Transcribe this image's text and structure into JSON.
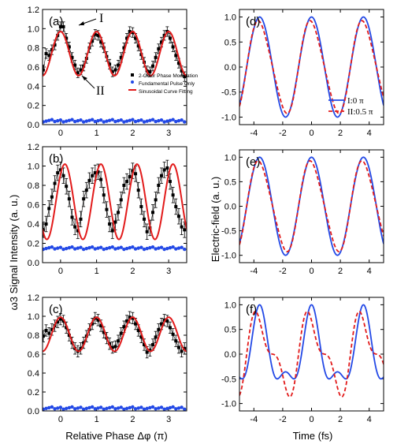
{
  "colors": {
    "measured": "#000000",
    "fit": "#e21b1b",
    "fundamental": "#2349e6",
    "field_I": "#2349e6",
    "field_II": "#e21b1b"
  },
  "left_xlabel": "Relative Phase Δφ (π)",
  "left_ylabel": "ω3 Signal Intensity (a. u.)",
  "right_xlabel": "Time (fs)",
  "right_ylabel": "Electric-field (a. u.)",
  "legend_left": [
    "2-Color Phase Modulation",
    "Fundamental Pulse Only",
    "Sinusoidal Curve Fitting"
  ],
  "legend_right": [
    "I:0 π",
    "II:0.5 π"
  ],
  "annotations": {
    "I": "I",
    "II": "II"
  },
  "chart_data": [
    {
      "panel": "(a)",
      "type": "scatter",
      "xlim": [
        -0.5,
        3.5
      ],
      "ylim": [
        0.0,
        1.2
      ],
      "xticks": [
        "0",
        "1",
        "2",
        "3"
      ],
      "yticks": [
        "0.0",
        "0.2",
        "0.4",
        "0.6",
        "0.8",
        "1.0",
        "1.2"
      ],
      "series": [
        {
          "name": "2-Color Phase Modulation",
          "x": [
            -0.48,
            -0.4,
            -0.32,
            -0.24,
            -0.16,
            -0.08,
            0.0,
            0.08,
            0.16,
            0.24,
            0.32,
            0.4,
            0.48,
            0.56,
            0.64,
            0.72,
            0.8,
            0.88,
            0.96,
            1.04,
            1.12,
            1.2,
            1.28,
            1.36,
            1.44,
            1.52,
            1.6,
            1.68,
            1.76,
            1.84,
            1.92,
            2.0,
            2.08,
            2.16,
            2.24,
            2.32,
            2.4,
            2.48,
            2.56,
            2.64,
            2.72,
            2.8,
            2.88,
            2.96,
            3.04,
            3.12,
            3.2,
            3.28,
            3.36,
            3.44
          ],
          "y": [
            0.57,
            0.74,
            0.72,
            0.78,
            0.83,
            0.93,
            1.02,
            1.02,
            0.9,
            0.81,
            0.7,
            0.62,
            0.54,
            0.57,
            0.61,
            0.69,
            0.8,
            0.87,
            0.94,
            0.93,
            0.86,
            0.8,
            0.71,
            0.63,
            0.55,
            0.57,
            0.62,
            0.7,
            0.8,
            0.9,
            0.97,
            0.96,
            0.9,
            0.82,
            0.73,
            0.65,
            0.56,
            0.55,
            0.61,
            0.7,
            0.79,
            0.86,
            0.93,
            0.97,
            0.9,
            0.81,
            0.72,
            0.64,
            0.56,
            0.5
          ],
          "err": 0.05
        },
        {
          "name": "Fundamental Pulse Only",
          "y_const": 0.04
        },
        {
          "name": "Sinusoidal Curve Fitting",
          "offset": 0.74,
          "amplitude": 0.23,
          "period": 1.0,
          "phase": 0.0
        }
      ]
    },
    {
      "panel": "(b)",
      "type": "scatter",
      "xlim": [
        -0.5,
        3.5
      ],
      "ylim": [
        0.0,
        1.2
      ],
      "xticks": [
        "0",
        "1",
        "2",
        "3"
      ],
      "yticks": [
        "0.0",
        "0.2",
        "0.4",
        "0.6",
        "0.8",
        "1.0",
        "1.2"
      ],
      "series": [
        {
          "name": "2-Color Phase Modulation",
          "x": [
            -0.48,
            -0.4,
            -0.32,
            -0.24,
            -0.16,
            -0.08,
            0.0,
            0.08,
            0.16,
            0.24,
            0.32,
            0.4,
            0.48,
            0.56,
            0.64,
            0.72,
            0.8,
            0.88,
            0.96,
            1.04,
            1.12,
            1.2,
            1.28,
            1.36,
            1.44,
            1.52,
            1.6,
            1.68,
            1.76,
            1.84,
            1.92,
            2.0,
            2.08,
            2.16,
            2.24,
            2.32,
            2.4,
            2.48,
            2.56,
            2.64,
            2.72,
            2.8,
            2.88,
            2.96,
            3.04,
            3.12,
            3.2,
            3.28,
            3.36,
            3.44
          ],
          "y": [
            0.34,
            0.4,
            0.56,
            0.68,
            0.82,
            0.93,
            0.96,
            0.9,
            0.79,
            0.66,
            0.47,
            0.37,
            0.33,
            0.45,
            0.66,
            0.75,
            0.85,
            0.9,
            0.93,
            0.94,
            0.86,
            0.7,
            0.55,
            0.4,
            0.33,
            0.42,
            0.52,
            0.65,
            0.8,
            0.84,
            0.89,
            0.95,
            0.92,
            0.75,
            0.58,
            0.45,
            0.32,
            0.36,
            0.52,
            0.65,
            0.8,
            0.9,
            0.96,
            0.98,
            0.84,
            0.7,
            0.58,
            0.48,
            0.37,
            0.34
          ],
          "err": 0.08
        },
        {
          "name": "Fundamental Pulse Only",
          "y_const": 0.15
        },
        {
          "name": "Sinusoidal Curve Fitting",
          "offset": 0.63,
          "amplitude": 0.39,
          "period": 1.0,
          "phase": 0.12
        }
      ]
    },
    {
      "panel": "(c)",
      "type": "scatter",
      "xlim": [
        -0.5,
        3.5
      ],
      "ylim": [
        0.0,
        1.2
      ],
      "xticks": [
        "0",
        "1",
        "2",
        "3"
      ],
      "yticks": [
        "0.0",
        "0.2",
        "0.4",
        "0.6",
        "0.8",
        "1.0",
        "1.2"
      ],
      "series": [
        {
          "name": "2-Color Phase Modulation",
          "x": [
            -0.48,
            -0.4,
            -0.32,
            -0.24,
            -0.16,
            -0.08,
            0.0,
            0.08,
            0.16,
            0.24,
            0.32,
            0.4,
            0.48,
            0.56,
            0.64,
            0.72,
            0.8,
            0.88,
            0.96,
            1.04,
            1.12,
            1.2,
            1.28,
            1.36,
            1.44,
            1.52,
            1.6,
            1.68,
            1.76,
            1.84,
            1.92,
            2.0,
            2.08,
            2.16,
            2.24,
            2.32,
            2.4,
            2.48,
            2.56,
            2.64,
            2.72,
            2.8,
            2.88,
            2.96,
            3.04,
            3.12,
            3.2,
            3.28,
            3.36,
            3.44
          ],
          "y": [
            0.79,
            0.85,
            0.82,
            0.86,
            0.9,
            0.94,
            0.97,
            0.95,
            0.88,
            0.8,
            0.72,
            0.66,
            0.63,
            0.66,
            0.72,
            0.79,
            0.86,
            0.92,
            0.98,
            0.96,
            0.9,
            0.83,
            0.77,
            0.71,
            0.67,
            0.68,
            0.74,
            0.82,
            0.89,
            0.95,
            0.99,
            0.98,
            0.92,
            0.85,
            0.78,
            0.7,
            0.62,
            0.64,
            0.7,
            0.78,
            0.86,
            0.92,
            0.96,
            0.95,
            0.88,
            0.81,
            0.74,
            0.67,
            0.63,
            0.66
          ],
          "err": 0.06
        },
        {
          "name": "Fundamental Pulse Only",
          "y_const": 0.03
        },
        {
          "name": "Sinusoidal Curve Fitting",
          "offset": 0.81,
          "amplitude": 0.18,
          "period": 1.0,
          "phase": 0.0
        }
      ]
    },
    {
      "panel": "(d)",
      "type": "line",
      "xlim": [
        -5,
        5
      ],
      "ylim": [
        -1.15,
        1.15
      ],
      "xticks": [
        "-4",
        "-2",
        "0",
        "2",
        "4"
      ],
      "yticks": [
        "-1.0",
        "-0.5",
        "0.0",
        "0.5",
        "1.0"
      ],
      "series": [
        {
          "name": "I:0 π",
          "style": "solid",
          "h1": 1.0,
          "h2": 0.0,
          "h2_phase": 0.0
        },
        {
          "name": "II:0.5 π",
          "style": "dashed",
          "h1": 1.0,
          "h2": 0.1,
          "h2_phase": 0.5
        }
      ]
    },
    {
      "panel": "(e)",
      "type": "line",
      "xlim": [
        -5,
        5
      ],
      "ylim": [
        -1.15,
        1.15
      ],
      "xticks": [
        "-4",
        "-2",
        "0",
        "2",
        "4"
      ],
      "yticks": [
        "-1.0",
        "-0.5",
        "0.0",
        "0.5",
        "1.0"
      ],
      "series": [
        {
          "name": "I:0 π",
          "style": "solid",
          "h1": 1.0,
          "h2": 0.0,
          "h2_phase": 0.0
        },
        {
          "name": "II:0.5 π",
          "style": "dashed",
          "h1": 1.0,
          "h2": 0.1,
          "h2_phase": 0.5
        }
      ]
    },
    {
      "panel": "(f)",
      "type": "line",
      "xlim": [
        -5,
        5
      ],
      "ylim": [
        -1.15,
        1.15
      ],
      "xticks": [
        "-4",
        "-2",
        "0",
        "2",
        "4"
      ],
      "yticks": [
        "-1.0",
        "-0.5",
        "0.0",
        "0.5",
        "1.0"
      ],
      "series": [
        {
          "name": "I:0 π",
          "style": "solid",
          "h1": 0.72,
          "h2": 0.34,
          "h2_phase": 0.0
        },
        {
          "name": "II:0.5 π",
          "style": "dashed",
          "h1": 0.72,
          "h2": 0.34,
          "h2_phase": 0.5
        }
      ]
    }
  ]
}
